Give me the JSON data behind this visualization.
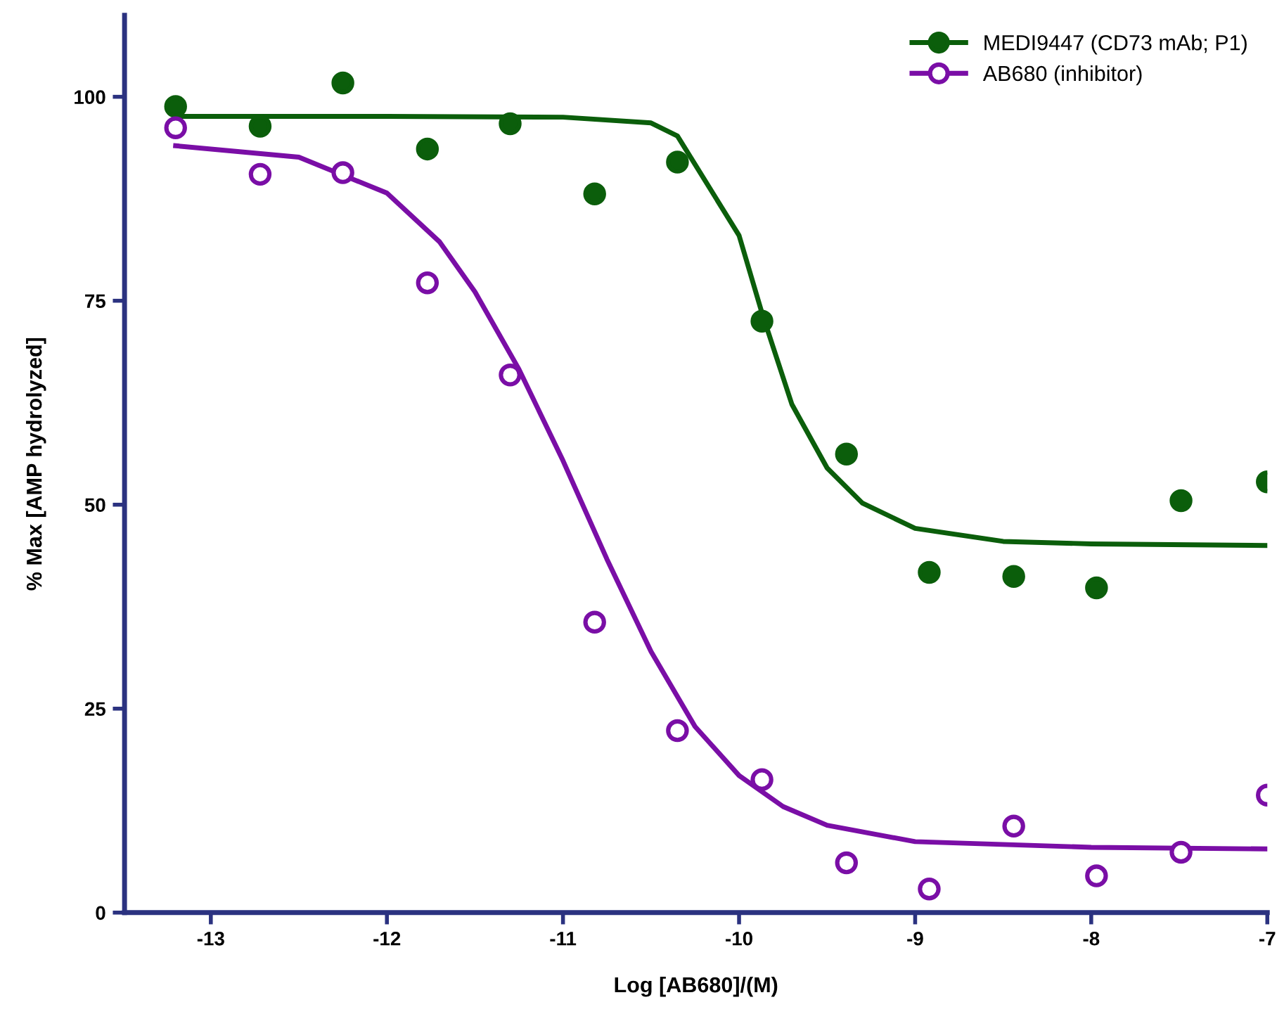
{
  "chart_data": {
    "type": "scatter",
    "xlabel": "Log [AB680]/(M)",
    "ylabel": "% Max [AMP hydrolyzed]",
    "xlim": [
      -13.49,
      -7
    ],
    "ylim": [
      0,
      110
    ],
    "xticks": [
      -13,
      -12,
      -11,
      -10,
      -9,
      -8,
      -7
    ],
    "yticks": [
      0,
      25,
      50,
      75,
      100
    ],
    "grid": false,
    "legend": "top right",
    "series": [
      {
        "name": "MEDI9447 (CD73 mAb; P1)",
        "color": "#0b5e0b",
        "marker": "circle",
        "x": [
          -13.2,
          -12.72,
          -12.25,
          -11.77,
          -11.3,
          -10.82,
          -10.35,
          -9.87,
          -9.39,
          -8.92,
          -8.44,
          -7.97,
          -7.49,
          -7.0
        ],
        "values": [
          98.8,
          96.4,
          101.7,
          93.6,
          96.7,
          88.1,
          92.0,
          72.5,
          56.2,
          41.7,
          41.2,
          39.8,
          50.5,
          52.8
        ]
      },
      {
        "name": "AB680 (inhibitor)",
        "color": "#7a0ea6",
        "marker": "circle",
        "x": [
          -13.2,
          -12.72,
          -12.25,
          -11.77,
          -11.3,
          -10.82,
          -10.35,
          -9.87,
          -9.39,
          -8.92,
          -8.44,
          -7.97,
          -7.49,
          -7.0
        ],
        "values": [
          96.2,
          90.5,
          90.7,
          77.2,
          65.9,
          35.6,
          22.3,
          16.3,
          6.1,
          2.9,
          10.6,
          4.5,
          7.4,
          14.4
        ]
      },
      {
        "color": "#0b5e0b",
        "type": "line",
        "marker": "none",
        "x": [
          -13.2,
          -12,
          -11,
          -10.5,
          -10.35,
          -10.0,
          -9.87,
          -9.7,
          -9.5,
          -9.3,
          -9.0,
          -8.5,
          -8.0,
          -7.0
        ],
        "values": [
          97.6,
          97.6,
          97.5,
          96.8,
          95.2,
          83,
          73.5,
          62.3,
          54.5,
          50.2,
          47.1,
          45.5,
          45.2,
          45.0
        ]
      },
      {
        "color": "#7a0ea6",
        "type": "line",
        "marker": "none",
        "x": [
          -13.2,
          -12.5,
          -12.0,
          -11.7,
          -11.5,
          -11.25,
          -11.0,
          -10.75,
          -10.5,
          -10.25,
          -10.0,
          -9.75,
          -9.5,
          -9.0,
          -8.0,
          -7.0
        ],
        "values": [
          94.0,
          92.6,
          88.2,
          82.2,
          76.1,
          66.6,
          55.4,
          43.3,
          32.0,
          22.8,
          16.8,
          13.0,
          10.7,
          8.7,
          8.0,
          7.8
        ]
      }
    ]
  }
}
